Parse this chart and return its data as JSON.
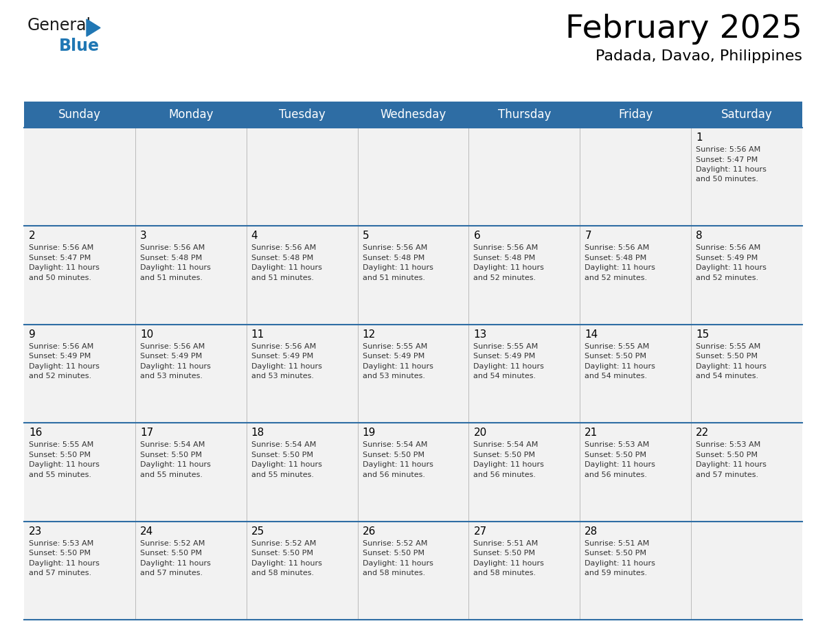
{
  "title": "February 2025",
  "subtitle": "Padada, Davao, Philippines",
  "header_bg_color": "#2E6DA4",
  "header_text_color": "#FFFFFF",
  "cell_bg_color": "#F2F2F2",
  "row_line_color": "#2E6DA4",
  "sep_line_color": "#BBBBBB",
  "day_headers": [
    "Sunday",
    "Monday",
    "Tuesday",
    "Wednesday",
    "Thursday",
    "Friday",
    "Saturday"
  ],
  "days": [
    {
      "day": 1,
      "col": 6,
      "row": 0,
      "sunrise": "5:56 AM",
      "sunset": "5:47 PM",
      "daylight_hours": 11,
      "daylight_minutes": 50
    },
    {
      "day": 2,
      "col": 0,
      "row": 1,
      "sunrise": "5:56 AM",
      "sunset": "5:47 PM",
      "daylight_hours": 11,
      "daylight_minutes": 50
    },
    {
      "day": 3,
      "col": 1,
      "row": 1,
      "sunrise": "5:56 AM",
      "sunset": "5:48 PM",
      "daylight_hours": 11,
      "daylight_minutes": 51
    },
    {
      "day": 4,
      "col": 2,
      "row": 1,
      "sunrise": "5:56 AM",
      "sunset": "5:48 PM",
      "daylight_hours": 11,
      "daylight_minutes": 51
    },
    {
      "day": 5,
      "col": 3,
      "row": 1,
      "sunrise": "5:56 AM",
      "sunset": "5:48 PM",
      "daylight_hours": 11,
      "daylight_minutes": 51
    },
    {
      "day": 6,
      "col": 4,
      "row": 1,
      "sunrise": "5:56 AM",
      "sunset": "5:48 PM",
      "daylight_hours": 11,
      "daylight_minutes": 52
    },
    {
      "day": 7,
      "col": 5,
      "row": 1,
      "sunrise": "5:56 AM",
      "sunset": "5:48 PM",
      "daylight_hours": 11,
      "daylight_minutes": 52
    },
    {
      "day": 8,
      "col": 6,
      "row": 1,
      "sunrise": "5:56 AM",
      "sunset": "5:49 PM",
      "daylight_hours": 11,
      "daylight_minutes": 52
    },
    {
      "day": 9,
      "col": 0,
      "row": 2,
      "sunrise": "5:56 AM",
      "sunset": "5:49 PM",
      "daylight_hours": 11,
      "daylight_minutes": 52
    },
    {
      "day": 10,
      "col": 1,
      "row": 2,
      "sunrise": "5:56 AM",
      "sunset": "5:49 PM",
      "daylight_hours": 11,
      "daylight_minutes": 53
    },
    {
      "day": 11,
      "col": 2,
      "row": 2,
      "sunrise": "5:56 AM",
      "sunset": "5:49 PM",
      "daylight_hours": 11,
      "daylight_minutes": 53
    },
    {
      "day": 12,
      "col": 3,
      "row": 2,
      "sunrise": "5:55 AM",
      "sunset": "5:49 PM",
      "daylight_hours": 11,
      "daylight_minutes": 53
    },
    {
      "day": 13,
      "col": 4,
      "row": 2,
      "sunrise": "5:55 AM",
      "sunset": "5:49 PM",
      "daylight_hours": 11,
      "daylight_minutes": 54
    },
    {
      "day": 14,
      "col": 5,
      "row": 2,
      "sunrise": "5:55 AM",
      "sunset": "5:50 PM",
      "daylight_hours": 11,
      "daylight_minutes": 54
    },
    {
      "day": 15,
      "col": 6,
      "row": 2,
      "sunrise": "5:55 AM",
      "sunset": "5:50 PM",
      "daylight_hours": 11,
      "daylight_minutes": 54
    },
    {
      "day": 16,
      "col": 0,
      "row": 3,
      "sunrise": "5:55 AM",
      "sunset": "5:50 PM",
      "daylight_hours": 11,
      "daylight_minutes": 55
    },
    {
      "day": 17,
      "col": 1,
      "row": 3,
      "sunrise": "5:54 AM",
      "sunset": "5:50 PM",
      "daylight_hours": 11,
      "daylight_minutes": 55
    },
    {
      "day": 18,
      "col": 2,
      "row": 3,
      "sunrise": "5:54 AM",
      "sunset": "5:50 PM",
      "daylight_hours": 11,
      "daylight_minutes": 55
    },
    {
      "day": 19,
      "col": 3,
      "row": 3,
      "sunrise": "5:54 AM",
      "sunset": "5:50 PM",
      "daylight_hours": 11,
      "daylight_minutes": 56
    },
    {
      "day": 20,
      "col": 4,
      "row": 3,
      "sunrise": "5:54 AM",
      "sunset": "5:50 PM",
      "daylight_hours": 11,
      "daylight_minutes": 56
    },
    {
      "day": 21,
      "col": 5,
      "row": 3,
      "sunrise": "5:53 AM",
      "sunset": "5:50 PM",
      "daylight_hours": 11,
      "daylight_minutes": 56
    },
    {
      "day": 22,
      "col": 6,
      "row": 3,
      "sunrise": "5:53 AM",
      "sunset": "5:50 PM",
      "daylight_hours": 11,
      "daylight_minutes": 57
    },
    {
      "day": 23,
      "col": 0,
      "row": 4,
      "sunrise": "5:53 AM",
      "sunset": "5:50 PM",
      "daylight_hours": 11,
      "daylight_minutes": 57
    },
    {
      "day": 24,
      "col": 1,
      "row": 4,
      "sunrise": "5:52 AM",
      "sunset": "5:50 PM",
      "daylight_hours": 11,
      "daylight_minutes": 57
    },
    {
      "day": 25,
      "col": 2,
      "row": 4,
      "sunrise": "5:52 AM",
      "sunset": "5:50 PM",
      "daylight_hours": 11,
      "daylight_minutes": 58
    },
    {
      "day": 26,
      "col": 3,
      "row": 4,
      "sunrise": "5:52 AM",
      "sunset": "5:50 PM",
      "daylight_hours": 11,
      "daylight_minutes": 58
    },
    {
      "day": 27,
      "col": 4,
      "row": 4,
      "sunrise": "5:51 AM",
      "sunset": "5:50 PM",
      "daylight_hours": 11,
      "daylight_minutes": 58
    },
    {
      "day": 28,
      "col": 5,
      "row": 4,
      "sunrise": "5:51 AM",
      "sunset": "5:50 PM",
      "daylight_hours": 11,
      "daylight_minutes": 59
    }
  ],
  "num_rows": 5,
  "num_cols": 7,
  "logo_general_color": "#1a1a1a",
  "logo_blue_color": "#2077B4",
  "logo_triangle_color": "#2077B4",
  "title_fontsize": 34,
  "subtitle_fontsize": 16,
  "header_fontsize": 12,
  "day_num_fontsize": 11,
  "cell_text_fontsize": 8
}
